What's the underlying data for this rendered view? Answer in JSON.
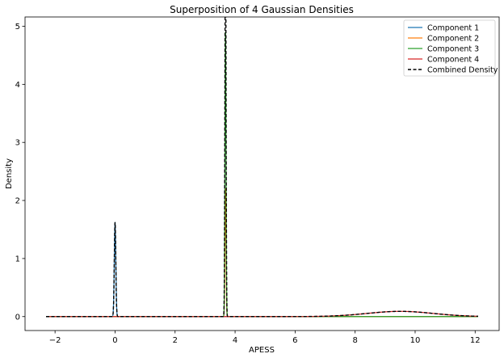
{
  "chart_data": {
    "type": "line",
    "title": "Superposition of 4 Gaussian Densities",
    "xlabel": "APESS",
    "ylabel": "Density",
    "xlim": [
      -3.0,
      12.8
    ],
    "ylim": [
      -0.24,
      5.16
    ],
    "xticks": [
      -2,
      0,
      2,
      4,
      6,
      8,
      10,
      12
    ],
    "yticks": [
      0,
      1,
      2,
      3,
      4,
      5
    ],
    "x_range": [
      -2.3,
      12.1
    ],
    "grid": false,
    "legend_position": "top-right",
    "series": [
      {
        "name": "Component 1",
        "color": "#1f77b4",
        "dashed": false,
        "mean": 0.0,
        "sd": 0.025,
        "peak": 1.62
      },
      {
        "name": "Component 2",
        "color": "#ff7f0e",
        "dashed": false,
        "mean": 3.68,
        "sd": 0.018,
        "peak": 2.2
      },
      {
        "name": "Component 3",
        "color": "#2ca02c",
        "dashed": false,
        "mean": 3.68,
        "sd": 0.018,
        "peak": 4.9
      },
      {
        "name": "Component 4",
        "color": "#d62728",
        "dashed": false,
        "mean": 9.5,
        "sd": 1.1,
        "peak": 0.09
      },
      {
        "name": "Combined Density",
        "color": "#000000",
        "dashed": true,
        "combined": true
      }
    ]
  }
}
